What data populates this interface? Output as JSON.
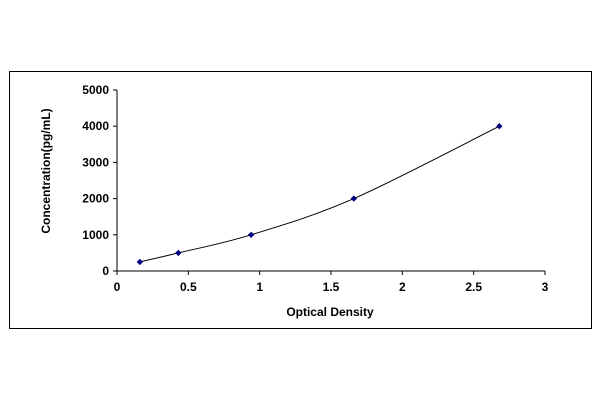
{
  "chart_data": {
    "type": "scatter",
    "title": "",
    "xlabel": "Optical Density",
    "ylabel": "Concentration(pg/mL)",
    "xlim": [
      0,
      3
    ],
    "ylim": [
      0,
      5000
    ],
    "xticks": [
      0,
      0.5,
      1,
      1.5,
      2,
      2.5,
      3
    ],
    "xtick_labels": [
      "0",
      "0.5",
      "1",
      "1.5",
      "2",
      "2.5",
      "3"
    ],
    "yticks": [
      0,
      1000,
      2000,
      3000,
      4000,
      5000
    ],
    "ytick_labels": [
      "0",
      "1000",
      "2000",
      "3000",
      "4000",
      "5000"
    ],
    "grid": false,
    "legend": "none",
    "series": [
      {
        "x": [
          0.16,
          0.43,
          0.94,
          1.66,
          2.68
        ],
        "y": [
          250,
          500,
          1000,
          2000,
          4000
        ],
        "marker": "diamond",
        "color": "#000080",
        "trendline": true
      }
    ]
  }
}
